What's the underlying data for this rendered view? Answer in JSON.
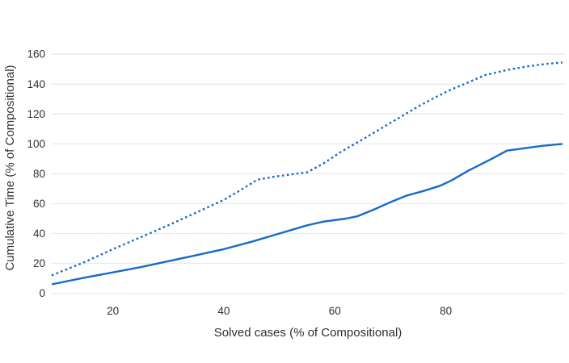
{
  "chart_data": {
    "type": "line",
    "title": "",
    "xlabel": "Solved cases (% of Compositional)",
    "ylabel": "Cumulative Time (% of Compositional)",
    "xlim": [
      9,
      101.3
    ],
    "ylim": [
      -4,
      172
    ],
    "x_ticks": [
      20,
      40,
      60,
      80
    ],
    "y_ticks": [
      0,
      20,
      40,
      60,
      80,
      100,
      120,
      140,
      160
    ],
    "grid": "horizontal-only",
    "legend": "none",
    "colors": {
      "line": "#166bc8",
      "grid": "#e8eaf0",
      "text": "#303030",
      "background": "#ffffff"
    },
    "series": [
      {
        "name": "solid",
        "style": "solid",
        "points": [
          [
            9,
            6
          ],
          [
            15,
            10.5
          ],
          [
            20,
            14
          ],
          [
            25,
            17.5
          ],
          [
            30,
            21.5
          ],
          [
            35,
            25.5
          ],
          [
            40,
            29.5
          ],
          [
            45,
            34.5
          ],
          [
            50,
            40
          ],
          [
            55,
            45.5
          ],
          [
            58,
            48
          ],
          [
            62,
            50
          ],
          [
            64,
            51.5
          ],
          [
            67,
            56
          ],
          [
            70,
            61
          ],
          [
            73,
            65.5
          ],
          [
            76,
            68.5
          ],
          [
            79,
            72
          ],
          [
            81,
            75.5
          ],
          [
            84,
            82
          ],
          [
            88,
            89.5
          ],
          [
            91,
            95.5
          ],
          [
            94,
            97
          ],
          [
            97,
            98.5
          ],
          [
            101,
            100
          ]
        ]
      },
      {
        "name": "dotted",
        "style": "dotted",
        "points": [
          [
            9,
            12
          ],
          [
            15,
            21
          ],
          [
            20,
            29.5
          ],
          [
            25,
            37.5
          ],
          [
            30,
            45.5
          ],
          [
            35,
            54
          ],
          [
            40,
            62.5
          ],
          [
            43,
            69
          ],
          [
            46,
            76
          ],
          [
            49,
            78
          ],
          [
            52,
            79.5
          ],
          [
            55,
            81
          ],
          [
            58,
            87
          ],
          [
            61,
            94.5
          ],
          [
            65,
            103
          ],
          [
            70,
            114
          ],
          [
            75,
            125
          ],
          [
            78,
            131
          ],
          [
            81,
            136.5
          ],
          [
            83,
            139.5
          ],
          [
            87,
            146
          ],
          [
            91,
            149.5
          ],
          [
            95,
            152
          ],
          [
            98,
            153.5
          ],
          [
            101,
            154.5
          ]
        ]
      }
    ]
  }
}
